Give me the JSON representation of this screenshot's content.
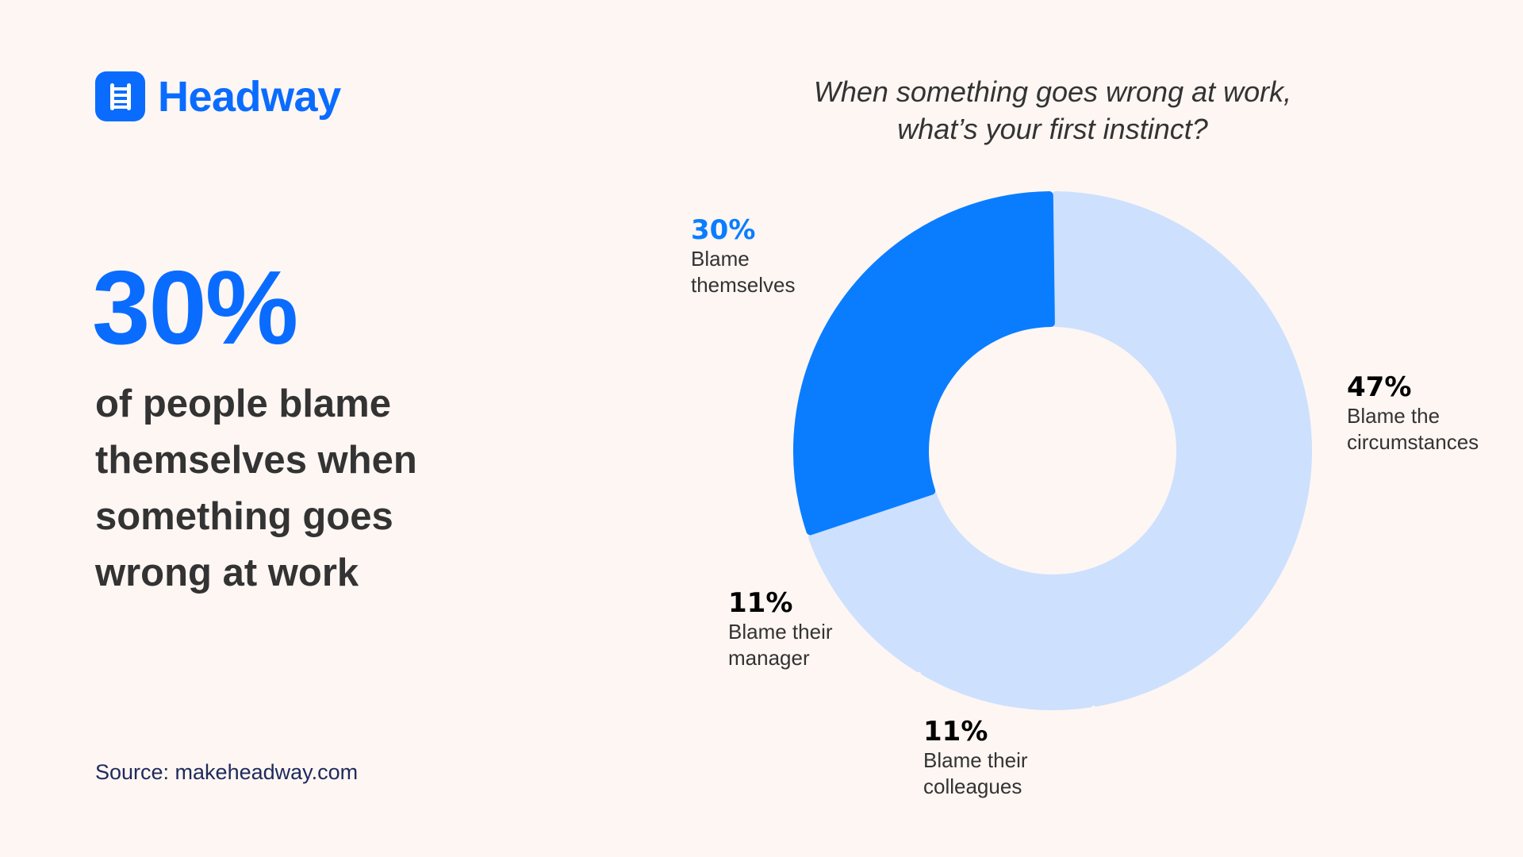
{
  "brand": {
    "name": "Headway",
    "icon": "ladder-icon",
    "color": "#0a6cff"
  },
  "headline": {
    "value": "30%",
    "text": "of people blame themselves when something goes wrong at work"
  },
  "source": "Source: makeheadway.com",
  "colors": {
    "background": "#fdf6f3",
    "highlight": "#0a7dff",
    "muted": "#cde0fd",
    "text": "#333333",
    "source": "#1f2a5c"
  },
  "chart_data": {
    "type": "pie",
    "variant": "donut",
    "title": "When something goes wrong at work, what’s your first instinct?",
    "title_lines": [
      "When something goes wrong at work,",
      "what’s your first instinct?"
    ],
    "categories": [
      "Blame the circumstances",
      "Blame their colleagues",
      "Blame their manager",
      "Blame themselves"
    ],
    "values": [
      47,
      11,
      11,
      30
    ],
    "unit": "%",
    "highlighted": "Blame themselves",
    "start_angle": "12 o'clock, clockwise",
    "labels": [
      {
        "pct": "47%",
        "line1": "Blame the",
        "line2": "circumstances"
      },
      {
        "pct": "11%",
        "line1": "Blame their",
        "line2": "colleagues"
      },
      {
        "pct": "11%",
        "line1": "Blame their",
        "line2": "manager"
      },
      {
        "pct": "30%",
        "line1": "Blame",
        "line2": "themselves"
      }
    ]
  }
}
